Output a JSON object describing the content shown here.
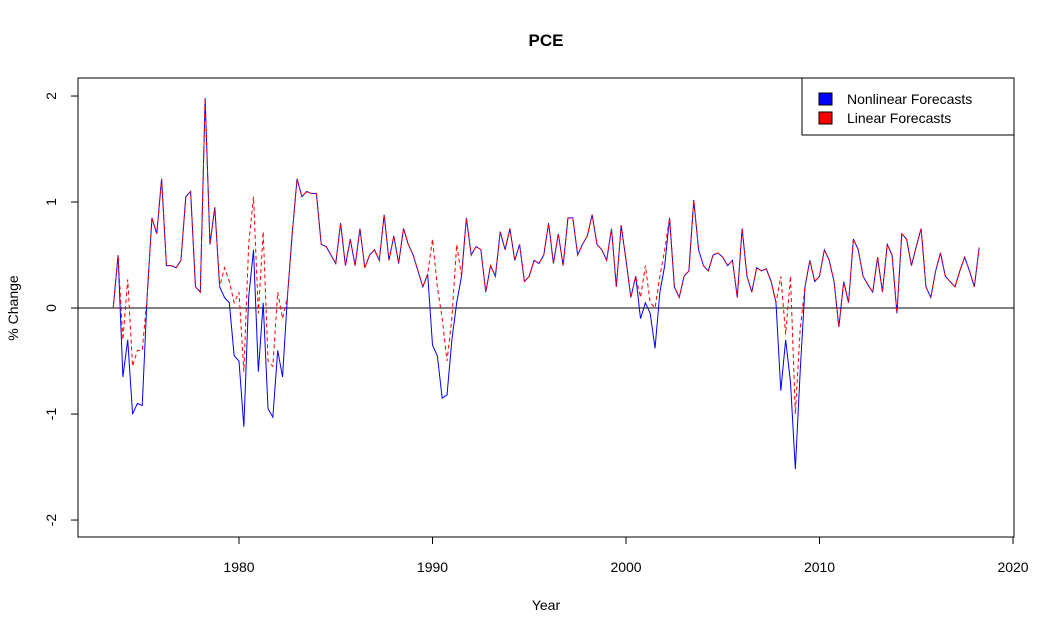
{
  "chart_data": {
    "type": "line",
    "title": "PCE",
    "x_label": "Year",
    "y_label": "% Change",
    "x": [
      1973.5,
      1973.75,
      1974,
      1974.25,
      1974.5,
      1974.75,
      1975,
      1975.25,
      1975.5,
      1975.75,
      1976,
      1976.25,
      1976.5,
      1976.75,
      1977,
      1977.25,
      1977.5,
      1977.75,
      1978,
      1978.25,
      1978.5,
      1978.75,
      1979,
      1979.25,
      1979.5,
      1979.75,
      1980,
      1980.25,
      1980.5,
      1980.75,
      1981,
      1981.25,
      1981.5,
      1981.75,
      1982,
      1982.25,
      1982.5,
      1982.75,
      1983,
      1983.25,
      1983.5,
      1983.75,
      1984,
      1984.25,
      1984.5,
      1984.75,
      1985,
      1985.25,
      1985.5,
      1985.75,
      1986,
      1986.25,
      1986.5,
      1986.75,
      1987,
      1987.25,
      1987.5,
      1987.75,
      1988,
      1988.25,
      1988.5,
      1988.75,
      1989,
      1989.25,
      1989.5,
      1989.75,
      1990,
      1990.25,
      1990.5,
      1990.75,
      1991,
      1991.25,
      1991.5,
      1991.75,
      1992,
      1992.25,
      1992.5,
      1992.75,
      1993,
      1993.25,
      1993.5,
      1993.75,
      1994,
      1994.25,
      1994.5,
      1994.75,
      1995,
      1995.25,
      1995.5,
      1995.75,
      1996,
      1996.25,
      1996.5,
      1996.75,
      1997,
      1997.25,
      1997.5,
      1997.75,
      1998,
      1998.25,
      1998.5,
      1998.75,
      1999,
      1999.25,
      1999.5,
      1999.75,
      2000,
      2000.25,
      2000.5,
      2000.75,
      2001,
      2001.25,
      2001.5,
      2001.75,
      2002,
      2002.25,
      2002.5,
      2002.75,
      2003,
      2003.25,
      2003.5,
      2003.75,
      2004,
      2004.25,
      2004.5,
      2004.75,
      2005,
      2005.25,
      2005.5,
      2005.75,
      2006,
      2006.25,
      2006.5,
      2006.75,
      2007,
      2007.25,
      2007.5,
      2007.75,
      2008,
      2008.25,
      2008.5,
      2008.75,
      2009,
      2009.25,
      2009.5,
      2009.75,
      2010,
      2010.25,
      2010.5,
      2010.75,
      2011,
      2011.25,
      2011.5,
      2011.75,
      2012,
      2012.25,
      2012.5,
      2012.75,
      2013,
      2013.25,
      2013.5,
      2013.75,
      2014,
      2014.25,
      2014.5,
      2014.75,
      2015,
      2015.25,
      2015.5,
      2015.75,
      2016,
      2016.25,
      2016.5,
      2016.75,
      2017,
      2017.25,
      2017.5,
      2017.75,
      2018,
      2018.25
    ],
    "series": [
      {
        "name": "Nonlinear Forecasts",
        "color": "#0000ff",
        "dash": false,
        "values": [
          0.0,
          0.5,
          -0.65,
          -0.3,
          -1.0,
          -0.9,
          -0.92,
          0.1,
          0.85,
          0.7,
          1.22,
          0.4,
          0.4,
          0.38,
          0.45,
          1.05,
          1.1,
          0.2,
          0.15,
          1.98,
          0.6,
          0.95,
          0.2,
          0.1,
          0.05,
          -0.45,
          -0.5,
          -1.12,
          0.1,
          0.55,
          -0.6,
          0.05,
          -0.95,
          -1.03,
          -0.4,
          -0.65,
          0.1,
          0.7,
          1.22,
          1.05,
          1.1,
          1.08,
          1.08,
          0.6,
          0.58,
          0.5,
          0.42,
          0.8,
          0.4,
          0.65,
          0.4,
          0.75,
          0.38,
          0.5,
          0.55,
          0.45,
          0.88,
          0.45,
          0.68,
          0.42,
          0.75,
          0.6,
          0.5,
          0.35,
          0.2,
          0.32,
          -0.35,
          -0.45,
          -0.85,
          -0.82,
          -0.3,
          0.05,
          0.3,
          0.85,
          0.5,
          0.58,
          0.55,
          0.15,
          0.4,
          0.3,
          0.72,
          0.55,
          0.75,
          0.45,
          0.6,
          0.25,
          0.3,
          0.45,
          0.42,
          0.5,
          0.8,
          0.42,
          0.7,
          0.4,
          0.85,
          0.85,
          0.5,
          0.6,
          0.68,
          0.88,
          0.6,
          0.55,
          0.45,
          0.75,
          0.2,
          0.78,
          0.45,
          0.1,
          0.3,
          -0.1,
          0.05,
          -0.05,
          -0.38,
          0.15,
          0.4,
          0.85,
          0.2,
          0.1,
          0.3,
          0.35,
          1.02,
          0.55,
          0.4,
          0.35,
          0.5,
          0.52,
          0.48,
          0.4,
          0.45,
          0.1,
          0.75,
          0.3,
          0.15,
          0.38,
          0.35,
          0.37,
          0.25,
          0.05,
          -0.78,
          -0.3,
          -0.7,
          -1.52,
          -0.6,
          0.2,
          0.45,
          0.25,
          0.3,
          0.55,
          0.45,
          0.25,
          -0.18,
          0.25,
          0.05,
          0.65,
          0.55,
          0.3,
          0.22,
          0.15,
          0.48,
          0.15,
          0.6,
          0.5,
          -0.05,
          0.7,
          0.65,
          0.4,
          0.58,
          0.75,
          0.2,
          0.1,
          0.35,
          0.52,
          0.3,
          0.25,
          0.2,
          0.35,
          0.48,
          0.35,
          0.2,
          0.57
        ]
      },
      {
        "name": "Linear Forecasts",
        "color": "#ff0000",
        "dash": true,
        "values": [
          0.0,
          0.5,
          -0.3,
          0.27,
          -0.55,
          -0.4,
          -0.4,
          0.1,
          0.85,
          0.7,
          1.22,
          0.4,
          0.4,
          0.38,
          0.45,
          1.05,
          1.1,
          0.2,
          0.15,
          1.98,
          0.6,
          0.95,
          0.2,
          0.38,
          0.25,
          0.05,
          0.15,
          -0.6,
          0.6,
          1.05,
          -0.05,
          0.72,
          -0.5,
          -0.55,
          0.15,
          -0.1,
          0.1,
          0.7,
          1.22,
          1.05,
          1.1,
          1.08,
          1.08,
          0.6,
          0.58,
          0.5,
          0.42,
          0.8,
          0.4,
          0.65,
          0.4,
          0.75,
          0.38,
          0.5,
          0.55,
          0.45,
          0.88,
          0.45,
          0.68,
          0.42,
          0.75,
          0.6,
          0.5,
          0.35,
          0.2,
          0.32,
          0.65,
          0.2,
          -0.1,
          -0.5,
          -0.1,
          0.6,
          0.3,
          0.85,
          0.5,
          0.58,
          0.55,
          0.15,
          0.4,
          0.3,
          0.72,
          0.55,
          0.75,
          0.45,
          0.6,
          0.25,
          0.3,
          0.45,
          0.42,
          0.5,
          0.8,
          0.42,
          0.7,
          0.4,
          0.85,
          0.85,
          0.5,
          0.6,
          0.68,
          0.88,
          0.6,
          0.55,
          0.45,
          0.75,
          0.2,
          0.78,
          0.45,
          0.1,
          0.3,
          0.1,
          0.4,
          0.05,
          0.0,
          0.3,
          0.55,
          0.85,
          0.2,
          0.1,
          0.3,
          0.35,
          1.02,
          0.55,
          0.4,
          0.35,
          0.5,
          0.52,
          0.48,
          0.4,
          0.45,
          0.1,
          0.75,
          0.3,
          0.15,
          0.38,
          0.35,
          0.37,
          0.25,
          0.05,
          0.3,
          -0.25,
          0.3,
          -1.0,
          -0.2,
          0.2,
          0.45,
          0.25,
          0.3,
          0.55,
          0.45,
          0.25,
          -0.18,
          0.25,
          0.05,
          0.65,
          0.55,
          0.3,
          0.22,
          0.15,
          0.48,
          0.15,
          0.6,
          0.5,
          -0.05,
          0.7,
          0.65,
          0.4,
          0.58,
          0.75,
          0.2,
          0.1,
          0.35,
          0.52,
          0.3,
          0.25,
          0.2,
          0.35,
          0.48,
          0.35,
          0.2,
          0.57
        ]
      }
    ],
    "xlim": [
      1971.68,
      2020.05
    ],
    "ylim": [
      -2.16,
      2.17
    ],
    "xticks": [
      1980,
      1990,
      2000,
      2010,
      2020
    ],
    "yticks": [
      -2,
      -1,
      0,
      1,
      2
    ],
    "hline": 0,
    "legend": "top-right"
  }
}
